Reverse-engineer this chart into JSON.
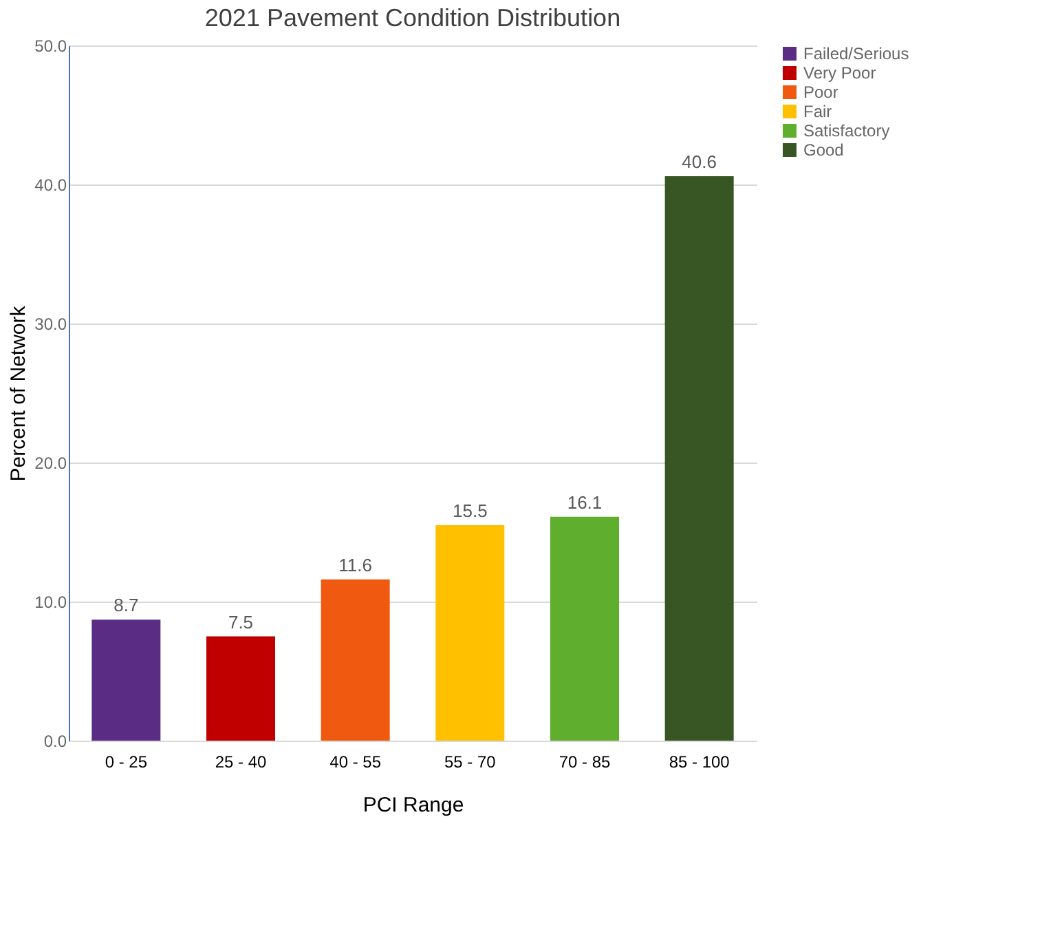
{
  "chart_data": {
    "type": "bar",
    "title": "2021 Pavement Condition Distribution",
    "xlabel": "PCI Range",
    "ylabel": "Percent of Network",
    "categories": [
      "0 - 25",
      "25 - 40",
      "40 - 55",
      "55 - 70",
      "70 - 85",
      "85 - 100"
    ],
    "series": [
      {
        "name": "Failed/Serious",
        "color": "#5b2c83",
        "values": [
          8.7,
          null,
          null,
          null,
          null,
          null
        ]
      },
      {
        "name": "Very Poor",
        "color": "#c00000",
        "values": [
          null,
          7.5,
          null,
          null,
          null,
          null
        ]
      },
      {
        "name": "Poor",
        "color": "#f05a10",
        "values": [
          null,
          null,
          11.6,
          null,
          null,
          null
        ]
      },
      {
        "name": "Fair",
        "color": "#ffc000",
        "values": [
          null,
          null,
          null,
          15.5,
          null,
          null
        ]
      },
      {
        "name": "Satisfactory",
        "color": "#5fae2e",
        "values": [
          null,
          null,
          null,
          null,
          16.1,
          null
        ]
      },
      {
        "name": "Good",
        "color": "#375623",
        "values": [
          null,
          null,
          null,
          null,
          null,
          40.6
        ]
      }
    ],
    "ylim": [
      0,
      50
    ],
    "yticks": [
      {
        "value": 0,
        "label": "0.0"
      },
      {
        "value": 10,
        "label": "10.0"
      },
      {
        "value": 20,
        "label": "20.0"
      },
      {
        "value": 30,
        "label": "30.0"
      },
      {
        "value": 40,
        "label": "40.0"
      },
      {
        "value": 50,
        "label": "50.0"
      }
    ],
    "grid": "y",
    "legend": "right",
    "data_labels": true
  }
}
